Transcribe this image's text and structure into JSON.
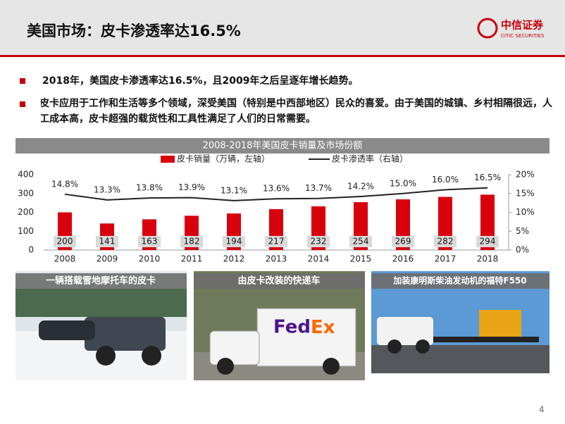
{
  "header": {
    "title": "美国市场：皮卡渗透率达16.5%",
    "logo": "中信证券",
    "logo_en": "CITIC SECURITIES"
  },
  "bullets": [
    "2018年，美国皮卡渗透率达16.5%，且2009年之后呈逐年增长趋势。",
    "皮卡应用于工作和生活等多个领域，深受美国（特别是中西部地区）民众的喜爱。由于美国的城镇、乡村相隔很远，人工成本高，皮卡超强的载货性和工具性满足了人们的日常需要。"
  ],
  "chart_data": {
    "type": "bar",
    "title": "2008-2018年美国皮卡销量及市场份额",
    "categories": [
      "2008",
      "2009",
      "2010",
      "2011",
      "2012",
      "2013",
      "2014",
      "2015",
      "2016",
      "2017",
      "2018"
    ],
    "series": [
      {
        "name": "皮卡销量（万辆，左轴）",
        "color": "#d9000d",
        "type": "bar",
        "values": [
          200,
          141,
          163,
          182,
          194,
          217,
          232,
          254,
          269,
          282,
          294
        ]
      },
      {
        "name": "皮卡渗透率（右轴）",
        "color": "#222222",
        "type": "line",
        "axis": "y2",
        "values": [
          14.8,
          13.3,
          13.8,
          13.9,
          13.1,
          13.6,
          13.7,
          14.2,
          15.0,
          16.0,
          16.5
        ],
        "value_labels": [
          "14.8%",
          "13.3%",
          "13.8%",
          "13.9%",
          "13.1%",
          "13.6%",
          "13.7%",
          "14.2%",
          "15.0%",
          "16.0%",
          "16.5%"
        ]
      }
    ],
    "ylim": [
      0,
      400
    ],
    "yticks": [
      0,
      100,
      200,
      300,
      400
    ],
    "y2lim": [
      0,
      20
    ],
    "y2ticks": [
      {
        "value": 0,
        "label": "0%"
      },
      {
        "value": 5,
        "label": "5%"
      },
      {
        "value": 10,
        "label": "10%"
      },
      {
        "value": 15,
        "label": "15%"
      },
      {
        "value": 20,
        "label": "20%"
      }
    ],
    "grid": false
  },
  "photos": [
    "一辆搭载雪地摩托车的皮卡",
    "由皮卡改装的快递车",
    "加装康明斯柴油发动机的福特F550"
  ],
  "page_number": "4"
}
